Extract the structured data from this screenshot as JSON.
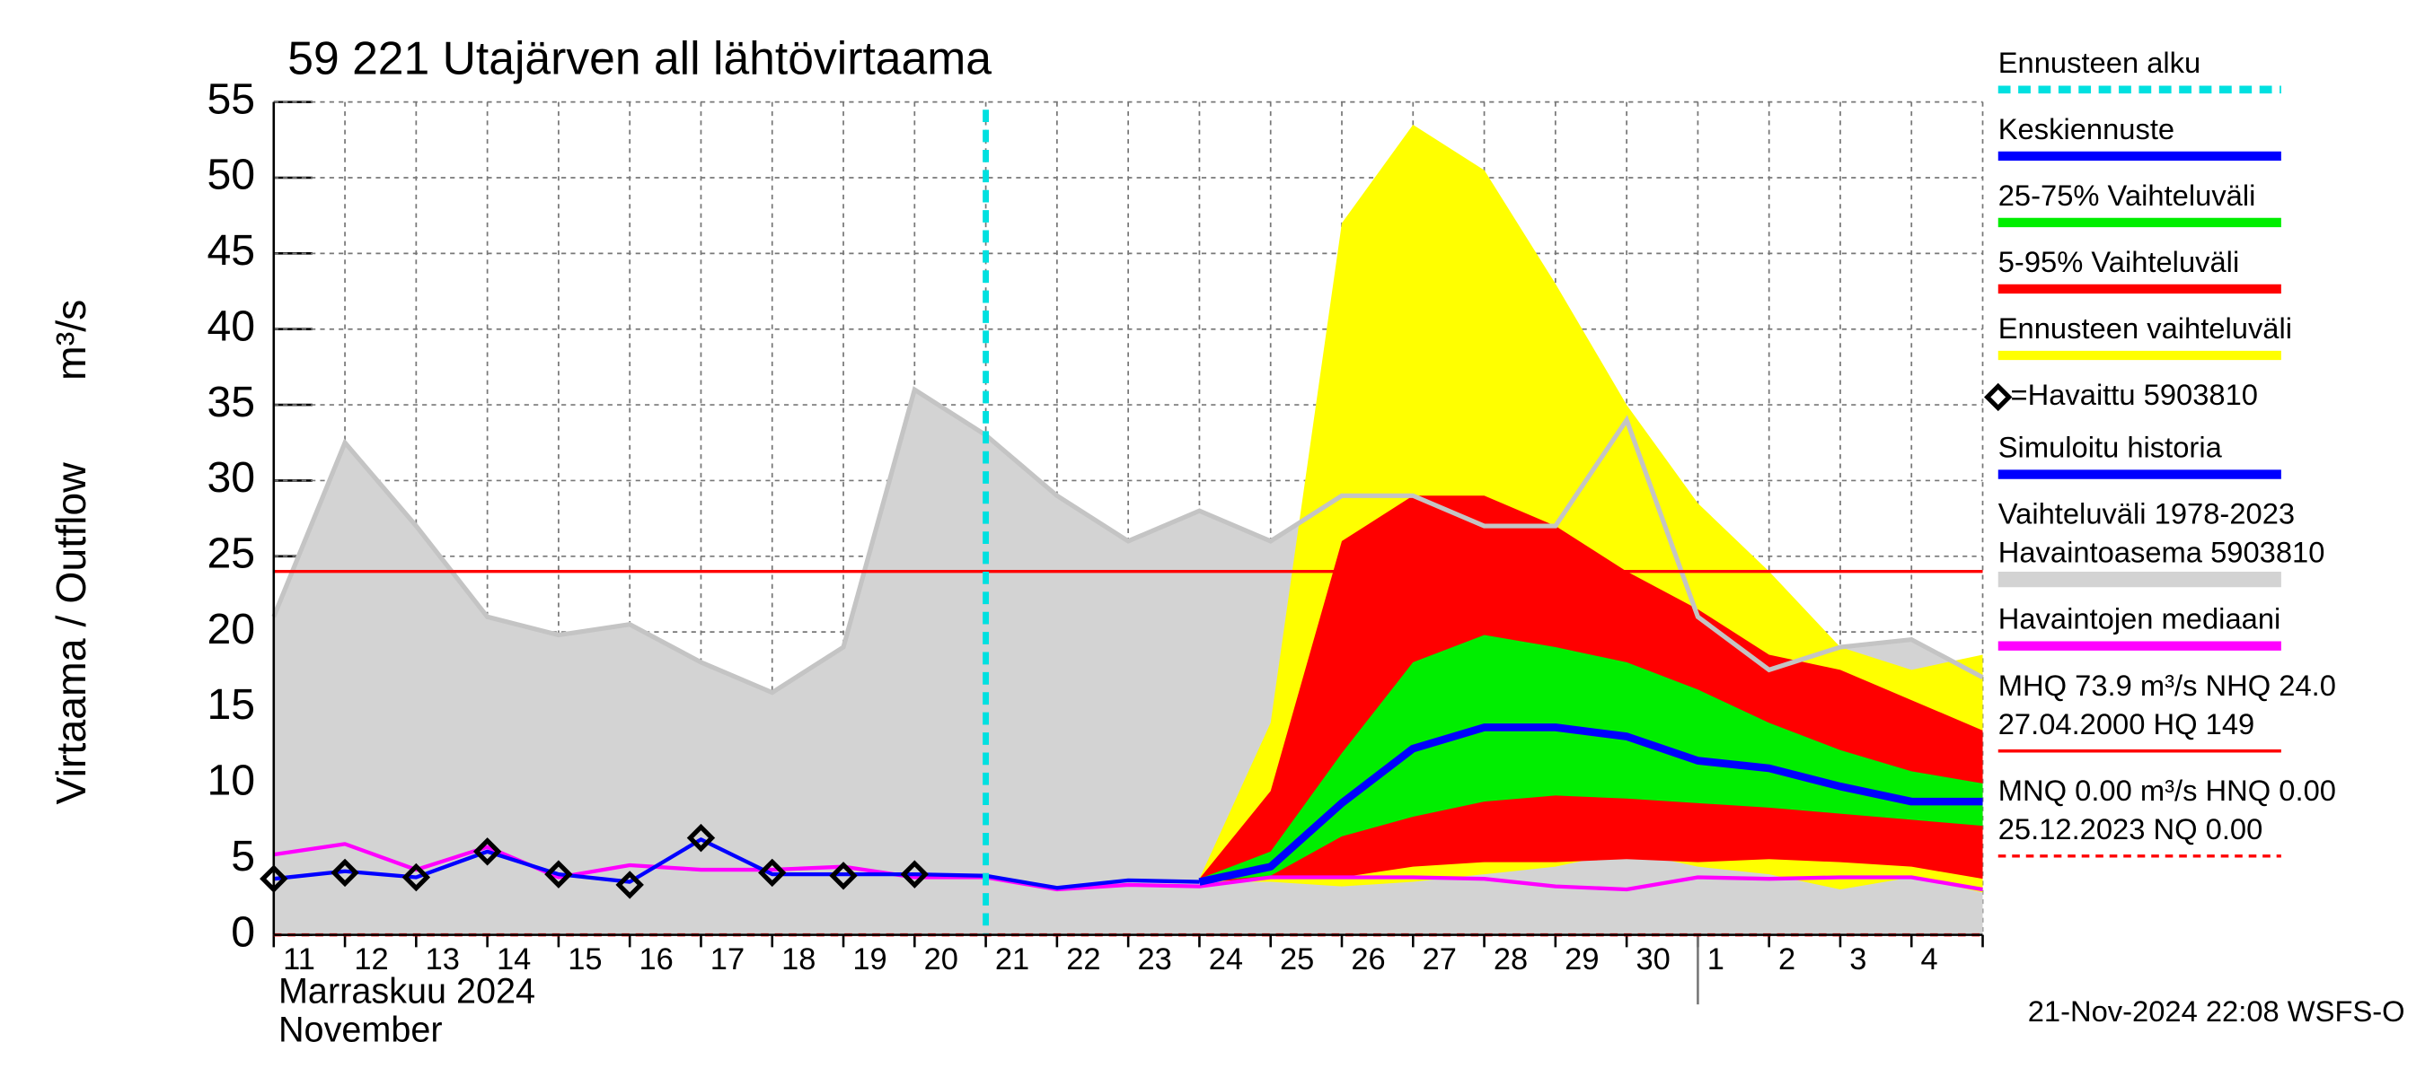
{
  "chart_data": {
    "type": "line",
    "title": "59 221 Utajärven all lähtövirtaama",
    "y_label": "Virtaama / Outflow",
    "y_unit": "m³/s",
    "month_label": "Marraskuu 2024",
    "month_label_en": "November",
    "timestamp": "21-Nov-2024 22:08 WSFS-O",
    "categories": [
      "11",
      "12",
      "13",
      "14",
      "15",
      "16",
      "17",
      "18",
      "19",
      "20",
      "21",
      "22",
      "23",
      "24",
      "25",
      "26",
      "27",
      "28",
      "29",
      "30",
      "1",
      "2",
      "3",
      "4",
      null
    ],
    "ylim": [
      0,
      55
    ],
    "yticks": [
      0,
      5,
      10,
      15,
      20,
      25,
      30,
      35,
      40,
      45,
      50,
      55
    ],
    "grid": true,
    "series": [
      {
        "name": "Ennusteen alku",
        "kind": "vline",
        "color": "#00e0e0",
        "at": "21"
      },
      {
        "name": "Keskiennuste",
        "kind": "line",
        "color": "#0000ff",
        "values": [
          null,
          null,
          null,
          null,
          null,
          null,
          null,
          null,
          null,
          null,
          null,
          null,
          null,
          3.5,
          4.5,
          8.7,
          12.3,
          13.7,
          13.7,
          13.1,
          11.5,
          11,
          9.8,
          8.8,
          8.8
        ]
      },
      {
        "name": "25-75% Vaihteluväli",
        "kind": "band",
        "color": "#00ee00",
        "upper": [
          null,
          null,
          null,
          null,
          null,
          null,
          null,
          null,
          null,
          null,
          null,
          null,
          null,
          3.7,
          5.5,
          12,
          18,
          19.8,
          19,
          18,
          16.2,
          14,
          12.2,
          10.8,
          10
        ],
        "lower": [
          null,
          null,
          null,
          null,
          null,
          null,
          null,
          null,
          null,
          null,
          null,
          null,
          null,
          3.5,
          3.9,
          6.5,
          7.8,
          8.8,
          9.2,
          9,
          8.7,
          8.4,
          8,
          7.6,
          7.2
        ]
      },
      {
        "name": "5-95% Vaihteluväli",
        "kind": "band",
        "color": "#ff0000",
        "upper": [
          null,
          null,
          null,
          null,
          null,
          null,
          null,
          null,
          null,
          null,
          null,
          null,
          null,
          3.7,
          9.5,
          26,
          29,
          29,
          27,
          24,
          21.5,
          18.5,
          17.5,
          15.5,
          13.5
        ],
        "lower": [
          null,
          null,
          null,
          null,
          null,
          null,
          null,
          null,
          null,
          null,
          null,
          null,
          null,
          3.5,
          3.7,
          3.8,
          4.5,
          4.8,
          4.8,
          5,
          4.8,
          5,
          4.8,
          4.5,
          3.7
        ]
      },
      {
        "name": "Ennusteen vaihteluväli",
        "kind": "band",
        "color": "#ffff00",
        "upper": [
          null,
          null,
          null,
          null,
          null,
          null,
          null,
          null,
          null,
          null,
          null,
          null,
          null,
          3.7,
          14,
          47,
          53.5,
          50.5,
          43,
          35,
          28.5,
          24,
          19,
          17.5,
          18.5
        ],
        "lower": [
          null,
          null,
          null,
          null,
          null,
          null,
          null,
          null,
          null,
          null,
          null,
          null,
          null,
          3.5,
          3.5,
          3.2,
          3.5,
          4,
          4.5,
          5.5,
          4.5,
          4,
          3,
          3.8,
          2.8
        ]
      },
      {
        "name": "=Havaittu 5903810",
        "kind": "markers",
        "color": "#000000",
        "values": [
          3.7,
          4.1,
          3.8,
          5.5,
          4,
          3.3,
          6.4,
          4.1,
          3.9,
          4,
          null,
          null,
          null,
          null,
          null,
          null,
          null,
          null,
          null,
          null,
          null,
          null,
          null,
          null,
          null
        ]
      },
      {
        "name": "Simuloitu historia",
        "kind": "line",
        "color": "#0000ff",
        "values": [
          3.7,
          4.2,
          3.8,
          5.5,
          4,
          3.5,
          6.3,
          4,
          4,
          4,
          3.9,
          3.1,
          3.6,
          3.5,
          null,
          null,
          null,
          null,
          null,
          null,
          null,
          null,
          null,
          null,
          null
        ]
      },
      {
        "name": "Vaihteluväli 1978-2023",
        "subname": " Havaintoasema 5903810",
        "kind": "area",
        "color": "#d3d3d3",
        "line_color": "#c4c4c4",
        "values": [
          21,
          32.5,
          27,
          21,
          19.8,
          20.5,
          18,
          16,
          19,
          36,
          33,
          29,
          26,
          28,
          26,
          29,
          29,
          27,
          27,
          34,
          21,
          17.5,
          19,
          19.5,
          17
        ]
      },
      {
        "name": "Havaintojen mediaani",
        "kind": "line",
        "color": "#ff00ff",
        "values": [
          5.3,
          6,
          4.3,
          5.8,
          3.8,
          4.6,
          4.3,
          4.3,
          4.5,
          3.8,
          3.8,
          3,
          3.3,
          3.2,
          3.8,
          3.8,
          3.8,
          3.7,
          3.2,
          3,
          3.8,
          3.7,
          3.8,
          3.8,
          3
        ]
      }
    ],
    "reference_lines": [
      {
        "label_lines": [
          "MHQ 73.9 m³/s NHQ 24.0",
          "27.04.2000 HQ  149"
        ],
        "value": 24,
        "color": "#ff0000",
        "dashed": false
      },
      {
        "label_lines": [
          "MNQ 0.00 m³/s HNQ 0.00",
          "25.12.2023 NQ 0.00"
        ],
        "value": 0,
        "color": "#ff0000",
        "dashed": true
      }
    ]
  }
}
